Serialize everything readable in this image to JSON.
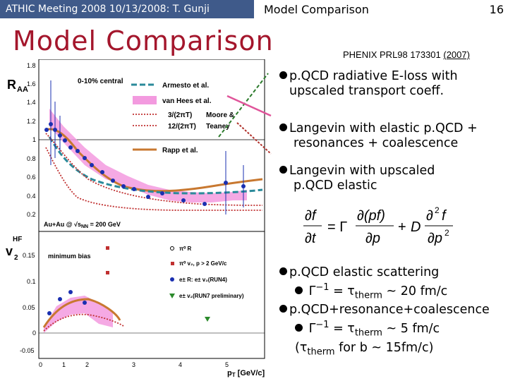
{
  "header": {
    "left": "ATHIC Meeting 2008 10/13/2008: T. Gunji",
    "title": "Model Comparison",
    "page": "16"
  },
  "slide_title": "Model Comparison",
  "reference": {
    "text": "PHENIX PRL98 173301 ",
    "year": "(2007)"
  },
  "bullets_top": [
    {
      "line1": "p.QCD radiative E-loss with",
      "line2": "upscaled transport coeff."
    },
    {
      "line1": "Langevin with elastic p.QCD +",
      "line2": "resonances + coalescence"
    },
    {
      "line1": "Langevin with upscaled",
      "line2": "p.QCD elastic"
    }
  ],
  "bullets_bottom": {
    "b1": "p.QCD elastic scattering",
    "b1_sub_a": "Γ",
    "b1_sub_b": "−1",
    "b1_sub_c": " = τ",
    "b1_sub_d": "therm",
    "b1_sub_e": " ~ 20 fm/c",
    "b2": "p.QCD+resonance+coalescence",
    "b2_sub_a": "Γ",
    "b2_sub_b": "−1",
    "b2_sub_c": " = τ",
    "b2_sub_d": "therm",
    "b2_sub_e": " ~ 5 fm/c",
    "b3_a": "(τ",
    "b3_b": "therm",
    "b3_c": " for b ~ 15fm/c)"
  },
  "plot": {
    "raa_label": "R",
    "raa_sub": "AA",
    "v2_label": "v",
    "v2_sup": "HF",
    "v2_sub": "2",
    "centrality": "0-10% central",
    "system": "Au+Au @ √s",
    "system_sub": "NN",
    "system_val": " = 200 GeV",
    "min_bias": "minimum bias",
    "xaxis": "p",
    "xaxis_sub": "T",
    "xaxis_unit": " [GeV/c]",
    "legend_top": [
      "Armesto et al.",
      "van Hees et al.",
      "3/(2πT)",
      "12/(2πT)",
      "Moore &",
      "Teaney",
      "Rapp et al."
    ],
    "legend_bottom": [
      "π⁰ R",
      "π⁰ v₂, p",
      " > 2 GeV/c",
      "e± R",
      ": e± v₂",
      "(RUN4)",
      "e± v₂",
      "(RUN7 preliminary)"
    ],
    "raa_ticks": [
      "1.8",
      "1.6",
      "1.4",
      "1.2",
      "1",
      "0.8",
      "0.6",
      "0.4",
      "0.2"
    ],
    "v2_ticks": [
      "0.15",
      "0.1",
      "0.05",
      "0",
      "-0.05"
    ],
    "x_ticks": [
      "0",
      "1",
      "2",
      "3",
      "4",
      "5"
    ]
  },
  "colors": {
    "header_bg": "#3f5a8a",
    "title_red": "#a4162c",
    "armesto": "#2a8a9a",
    "vanhees_fill": "#f39adf",
    "moore": "#c03030",
    "rapp": "#c87830",
    "arrow_green": "#2b7a2b",
    "arrow_pink": "#e0559a",
    "arrow_red": "#b0302a"
  }
}
